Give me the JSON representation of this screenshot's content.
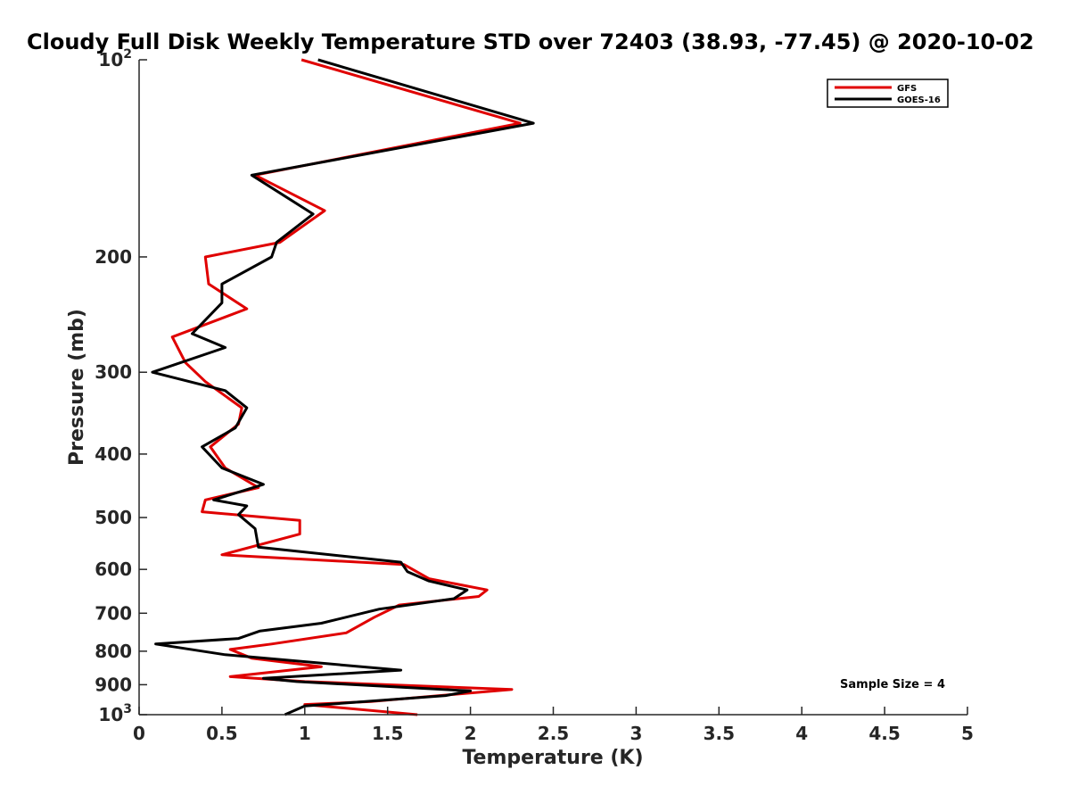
{
  "chart_data": {
    "type": "line",
    "title": "Cloudy Full Disk Weekly Temperature STD over 72403 (38.93, -77.45) @ 2020-10-02",
    "xlabel": "Temperature (K)",
    "ylabel": "Pressure (mb)",
    "xlim": [
      0,
      5
    ],
    "ylim": [
      1000,
      100
    ],
    "y_scale": "log",
    "y_reversed": true,
    "grid": false,
    "legend_position": "top-right",
    "x_ticks": [
      "0",
      "0.5",
      "1",
      "1.5",
      "2",
      "2.5",
      "3",
      "3.5",
      "4",
      "4.5",
      "5"
    ],
    "y_ticks": [
      {
        "value": 100,
        "base": "10",
        "exp": "2"
      },
      {
        "value": 200,
        "label": "200"
      },
      {
        "value": 300,
        "label": "300"
      },
      {
        "value": 400,
        "label": "400"
      },
      {
        "value": 500,
        "label": "500"
      },
      {
        "value": 600,
        "label": "600"
      },
      {
        "value": 700,
        "label": "700"
      },
      {
        "value": 800,
        "label": "800"
      },
      {
        "value": 900,
        "label": "900"
      },
      {
        "value": 1000,
        "base": "10",
        "exp": "3"
      }
    ],
    "annotation": "Sample Size = 4",
    "series": [
      {
        "name": "GFS",
        "color": "#e00000",
        "points": [
          [
            0.98,
            100
          ],
          [
            2.3,
            125
          ],
          [
            0.7,
            150
          ],
          [
            1.12,
            170
          ],
          [
            0.85,
            190
          ],
          [
            0.4,
            200
          ],
          [
            0.42,
            220
          ],
          [
            0.65,
            240
          ],
          [
            0.2,
            265
          ],
          [
            0.28,
            290
          ],
          [
            0.4,
            310
          ],
          [
            0.62,
            340
          ],
          [
            0.6,
            360
          ],
          [
            0.43,
            390
          ],
          [
            0.52,
            420
          ],
          [
            0.72,
            450
          ],
          [
            0.4,
            470
          ],
          [
            0.38,
            490
          ],
          [
            0.97,
            505
          ],
          [
            0.97,
            530
          ],
          [
            0.5,
            570
          ],
          [
            1.6,
            590
          ],
          [
            1.75,
            620
          ],
          [
            2.1,
            645
          ],
          [
            2.05,
            660
          ],
          [
            1.57,
            680
          ],
          [
            1.42,
            710
          ],
          [
            1.25,
            750
          ],
          [
            0.8,
            780
          ],
          [
            0.55,
            795
          ],
          [
            0.68,
            820
          ],
          [
            1.1,
            845
          ],
          [
            0.55,
            875
          ],
          [
            1.0,
            890
          ],
          [
            2.25,
            915
          ],
          [
            1.4,
            955
          ],
          [
            1.0,
            965
          ],
          [
            1.68,
            1000
          ]
        ]
      },
      {
        "name": "GOES-16",
        "color": "#000000",
        "points": [
          [
            1.08,
            100
          ],
          [
            2.38,
            125
          ],
          [
            0.68,
            150
          ],
          [
            1.05,
            172
          ],
          [
            0.83,
            190
          ],
          [
            0.8,
            200
          ],
          [
            0.5,
            220
          ],
          [
            0.5,
            235
          ],
          [
            0.32,
            262
          ],
          [
            0.52,
            275
          ],
          [
            0.08,
            300
          ],
          [
            0.52,
            320
          ],
          [
            0.65,
            340
          ],
          [
            0.58,
            365
          ],
          [
            0.38,
            390
          ],
          [
            0.5,
            420
          ],
          [
            0.75,
            445
          ],
          [
            0.45,
            470
          ],
          [
            0.65,
            480
          ],
          [
            0.6,
            495
          ],
          [
            0.7,
            520
          ],
          [
            0.72,
            555
          ],
          [
            1.58,
            585
          ],
          [
            1.62,
            605
          ],
          [
            1.75,
            625
          ],
          [
            1.98,
            645
          ],
          [
            1.9,
            665
          ],
          [
            1.45,
            690
          ],
          [
            1.1,
            725
          ],
          [
            0.73,
            745
          ],
          [
            0.6,
            765
          ],
          [
            0.1,
            780
          ],
          [
            0.52,
            810
          ],
          [
            1.58,
            855
          ],
          [
            0.75,
            880
          ],
          [
            0.95,
            890
          ],
          [
            2.0,
            920
          ],
          [
            1.85,
            935
          ],
          [
            1.0,
            970
          ],
          [
            0.88,
            1000
          ]
        ]
      }
    ]
  }
}
